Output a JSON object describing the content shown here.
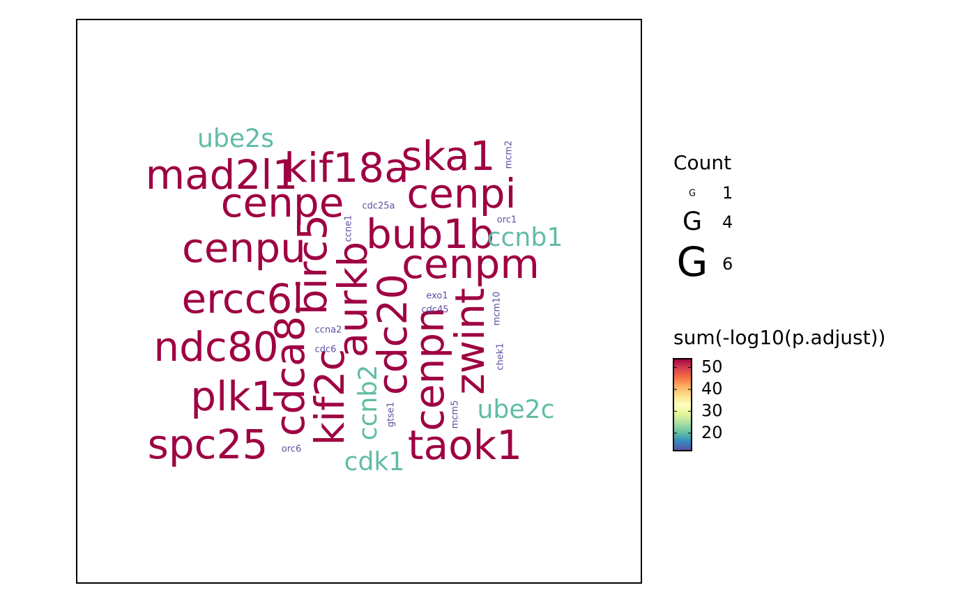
{
  "chart_data": {
    "type": "wordcloud",
    "words": [
      "mad2l1",
      "kif18a",
      "ska1",
      "cenpe",
      "cenpi",
      "birc5",
      "bub1b",
      "cenpu",
      "cenpm",
      "aurkb",
      "ercc6l",
      "cdca8",
      "cdc20",
      "zwint",
      "cenpn",
      "kif2c",
      "ndc80",
      "plk1",
      "spc25",
      "taok1",
      "ube2s",
      "ccnb1",
      "ccnb2",
      "ube2c",
      "cdk1",
      "cdc25a",
      "orc1",
      "ccne1",
      "mcm2",
      "exo1",
      "cdc45",
      "mcm10",
      "ccna2",
      "cdc6",
      "chek1",
      "gtse1",
      "mcm5",
      "orc6"
    ],
    "counts": [
      6,
      6,
      6,
      6,
      6,
      6,
      6,
      6,
      6,
      6,
      6,
      6,
      6,
      6,
      6,
      6,
      6,
      6,
      6,
      6,
      4,
      4,
      4,
      4,
      4,
      1,
      1,
      1,
      1,
      1,
      1,
      1,
      1,
      1,
      1,
      1,
      1,
      1
    ],
    "values": [
      54,
      54,
      54,
      54,
      54,
      54,
      54,
      54,
      54,
      54,
      54,
      54,
      54,
      54,
      54,
      54,
      54,
      54,
      54,
      54,
      20,
      20,
      20,
      20,
      20,
      12,
      12,
      12,
      12,
      12,
      12,
      12,
      12,
      12,
      12,
      12,
      12,
      12
    ],
    "size_title": "Count",
    "size_legend": [
      1,
      4,
      6
    ],
    "size_legend_glyph": "G",
    "color_title": "sum(-log10(p.adjust))",
    "clim": [
      12,
      54
    ],
    "cticks": [
      20,
      30,
      40,
      50
    ],
    "colorscale": [
      "#5E4FA2",
      "#3288BD",
      "#66C2A5",
      "#ABDDA4",
      "#E6F598",
      "#FFFFBF",
      "#FEE08B",
      "#FDAE61",
      "#F46D43",
      "#D53E4F",
      "#9E0142"
    ]
  }
}
